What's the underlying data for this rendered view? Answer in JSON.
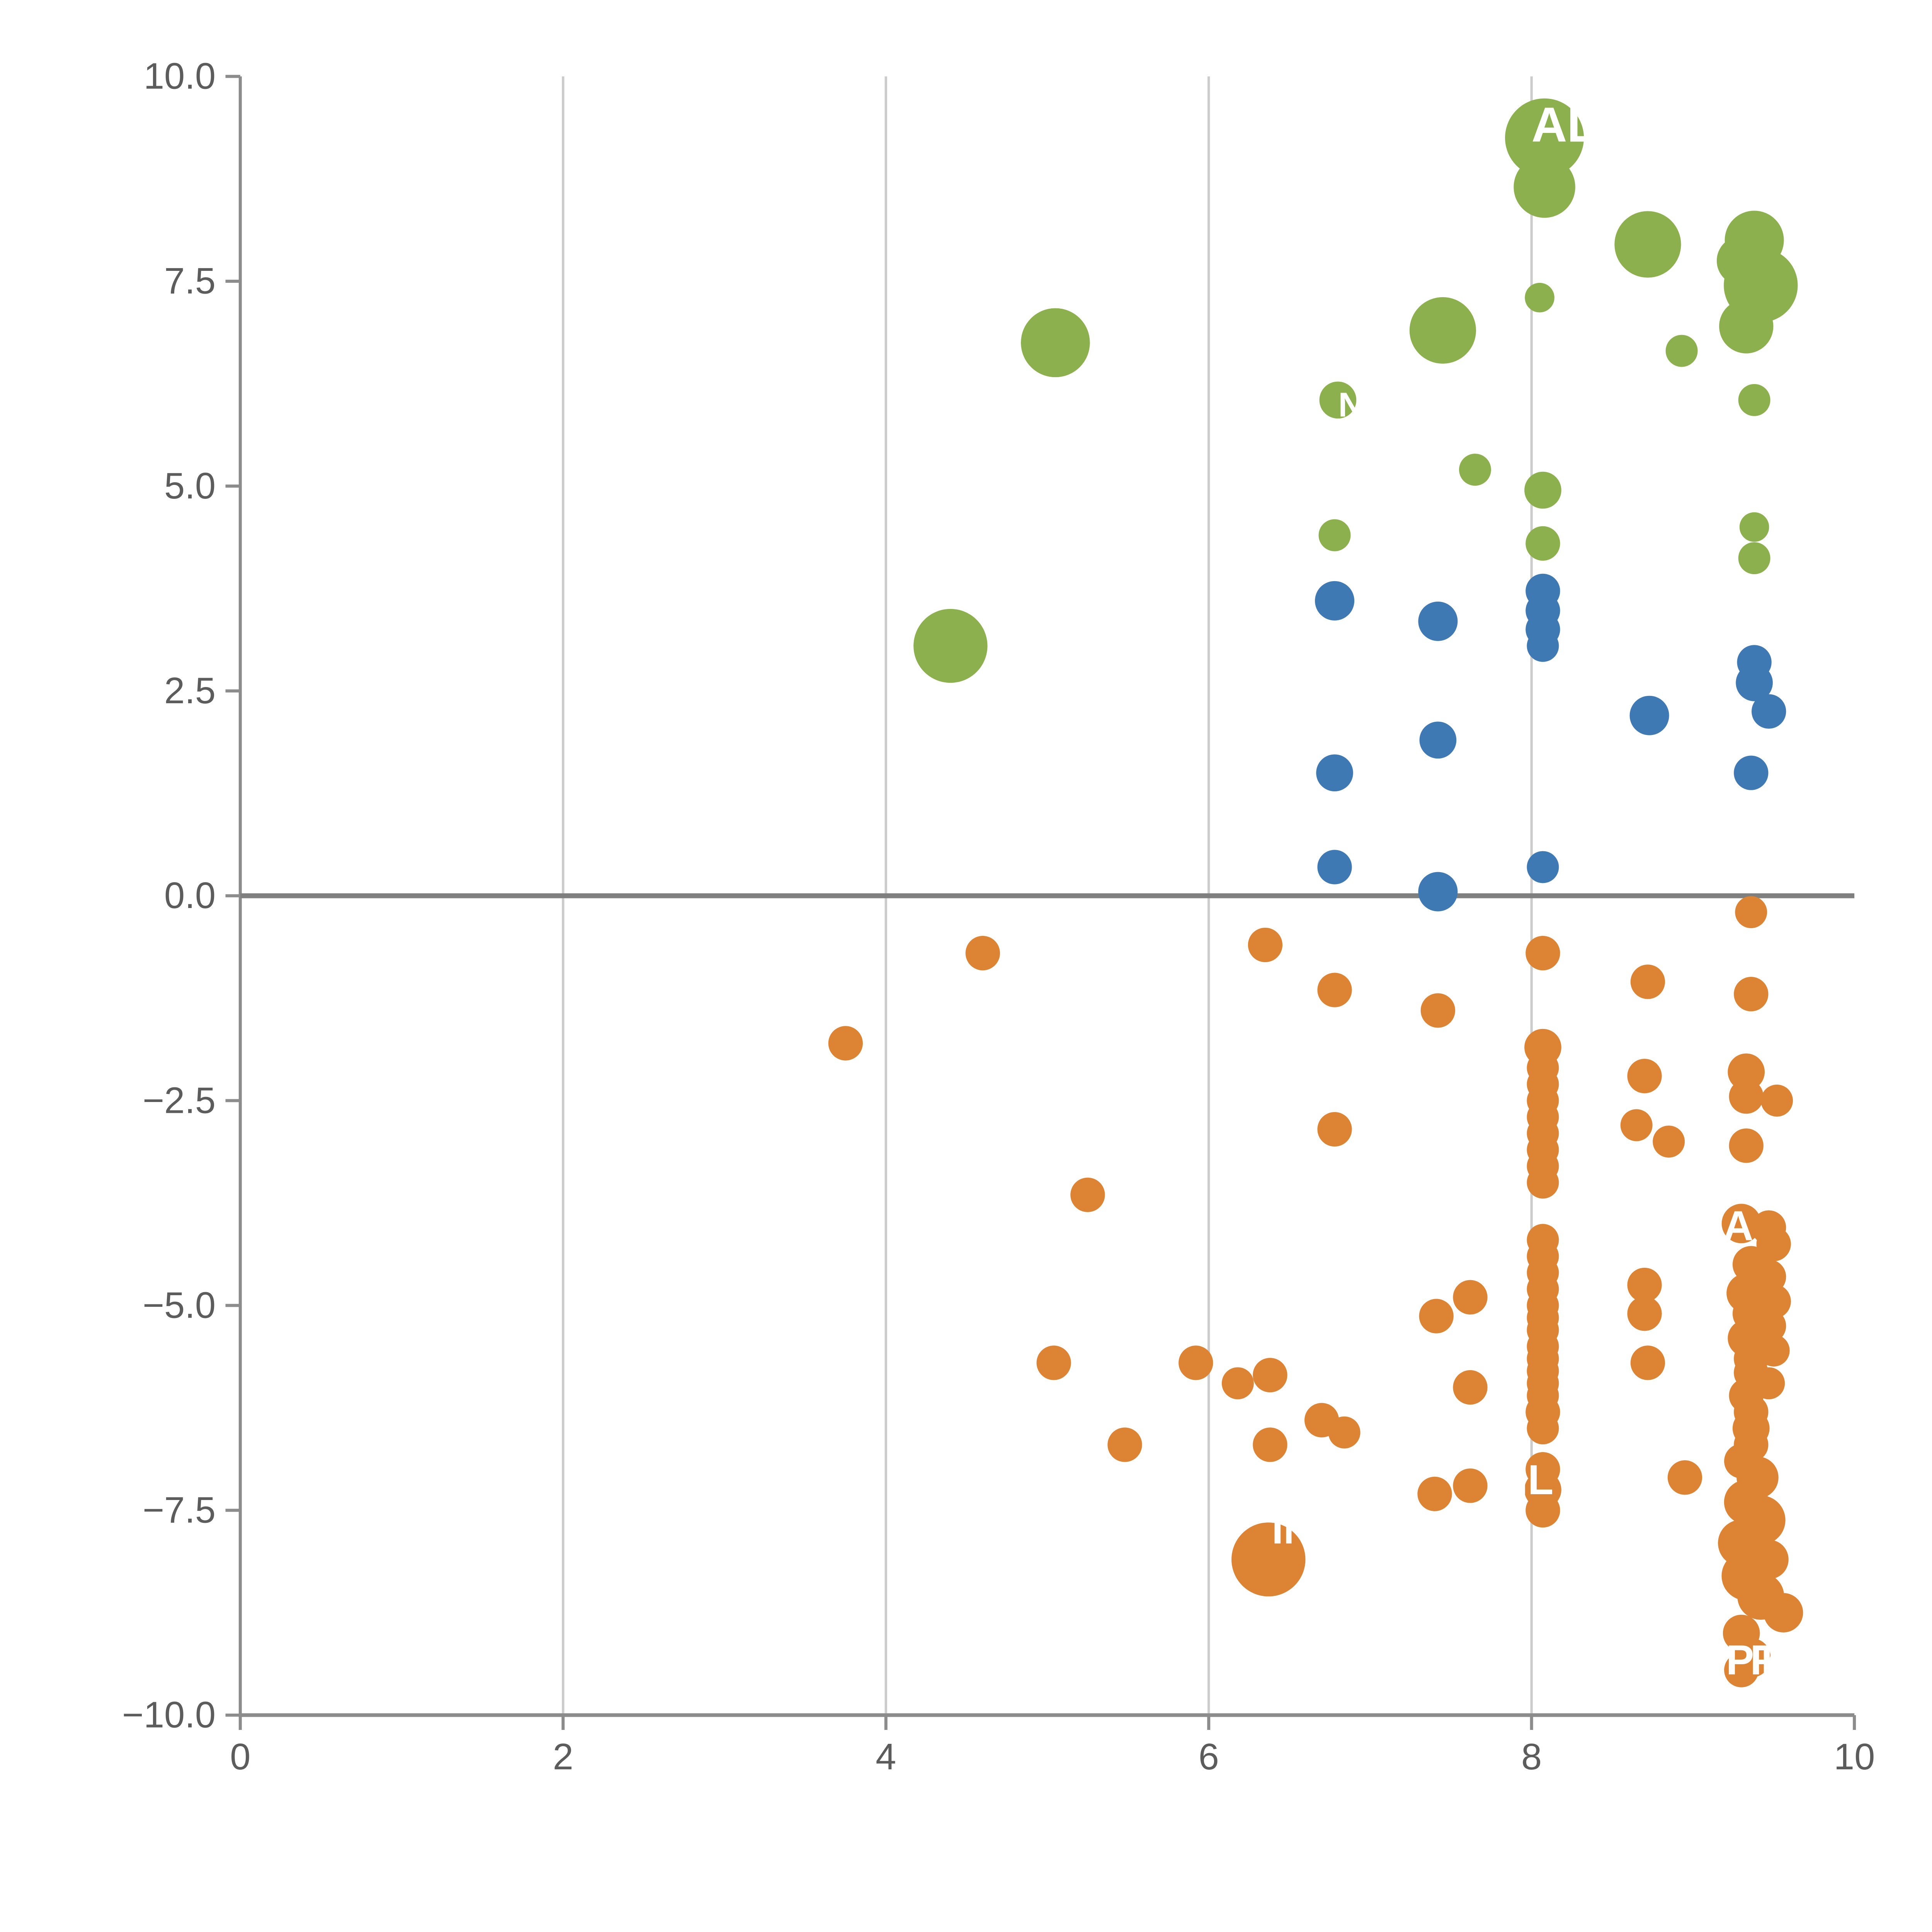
{
  "chart_data": {
    "type": "scatter",
    "title": "",
    "xlabel": "",
    "ylabel": "",
    "xlim": [
      0,
      10
    ],
    "ylim": [
      -10,
      10
    ],
    "grid": "vertical-only",
    "zero_line": true,
    "legend": "none",
    "style": {
      "background": "#ffffff",
      "grid_color": "#cccccc",
      "axis_color": "#8c8c8c",
      "zero_line_color": "#7f7f7f",
      "tick_label_color": "#5c5c5c",
      "bubble_label_color": "#ffffff"
    },
    "x_ticks": [
      {
        "value": 0,
        "label": "0",
        "grid": false
      },
      {
        "value": 2,
        "label": "2",
        "grid": true
      },
      {
        "value": 4,
        "label": "4",
        "grid": true
      },
      {
        "value": 6,
        "label": "6",
        "grid": true
      },
      {
        "value": 8,
        "label": "8",
        "grid": true
      },
      {
        "value": 10,
        "label": "10",
        "grid": false
      }
    ],
    "y_ticks": [
      {
        "value": 10,
        "label": "10.0"
      },
      {
        "value": 7.5,
        "label": "7.5"
      },
      {
        "value": 5,
        "label": "5.0"
      },
      {
        "value": 2.5,
        "label": "2.5"
      },
      {
        "value": 0,
        "label": "0.0"
      },
      {
        "value": -2.5,
        "label": "−2.5"
      },
      {
        "value": -5,
        "label": "−5.0"
      },
      {
        "value": -7.5,
        "label": "−7.5"
      },
      {
        "value": -10,
        "label": "−10.0"
      }
    ],
    "point_format": [
      "x",
      "y",
      "radius_px"
    ],
    "series": [
      {
        "name": "series-green",
        "color": "#8cb04e",
        "points": [
          [
            8.08,
            9.25,
            32
          ],
          [
            8.08,
            8.65,
            25
          ],
          [
            8.72,
            7.95,
            27
          ],
          [
            9.38,
            8.0,
            24
          ],
          [
            9.3,
            7.75,
            20
          ],
          [
            9.42,
            7.45,
            30
          ],
          [
            9.33,
            6.95,
            22
          ],
          [
            8.05,
            7.3,
            12
          ],
          [
            7.45,
            6.9,
            27
          ],
          [
            5.05,
            6.75,
            28
          ],
          [
            8.93,
            6.65,
            13
          ],
          [
            6.8,
            6.05,
            15
          ],
          [
            9.38,
            6.05,
            13
          ],
          [
            7.65,
            5.2,
            13
          ],
          [
            8.07,
            4.95,
            15
          ],
          [
            6.78,
            4.4,
            13
          ],
          [
            8.07,
            4.3,
            14
          ],
          [
            9.38,
            4.5,
            12
          ],
          [
            9.38,
            4.12,
            13
          ],
          [
            4.4,
            3.05,
            30
          ]
        ]
      },
      {
        "name": "series-blue",
        "color": "#3e79b4",
        "points": [
          [
            6.78,
            3.6,
            16
          ],
          [
            7.42,
            3.35,
            16
          ],
          [
            8.07,
            3.72,
            14
          ],
          [
            8.07,
            3.48,
            14
          ],
          [
            8.07,
            3.25,
            14
          ],
          [
            8.07,
            3.05,
            13
          ],
          [
            9.38,
            2.85,
            14
          ],
          [
            9.38,
            2.6,
            15
          ],
          [
            9.47,
            2.25,
            14
          ],
          [
            8.73,
            2.2,
            16
          ],
          [
            7.42,
            1.9,
            15
          ],
          [
            6.78,
            1.5,
            15
          ],
          [
            9.36,
            1.5,
            14
          ],
          [
            6.78,
            0.35,
            14
          ],
          [
            8.07,
            0.35,
            13
          ],
          [
            7.42,
            0.05,
            16
          ]
        ]
      },
      {
        "name": "series-orange",
        "color": "#dc8434",
        "points": [
          [
            4.6,
            -0.7,
            14
          ],
          [
            6.35,
            -0.6,
            14
          ],
          [
            8.07,
            -0.7,
            14
          ],
          [
            6.78,
            -1.15,
            14
          ],
          [
            8.72,
            -1.05,
            14
          ],
          [
            9.36,
            -1.2,
            14
          ],
          [
            7.42,
            -1.4,
            14
          ],
          [
            3.75,
            -1.8,
            14
          ],
          [
            9.36,
            -0.2,
            13
          ],
          [
            8.07,
            -1.85,
            15
          ],
          [
            8.07,
            -2.1,
            13
          ],
          [
            8.07,
            -2.3,
            13
          ],
          [
            8.07,
            -2.5,
            13
          ],
          [
            8.07,
            -2.7,
            13
          ],
          [
            8.07,
            -2.9,
            13
          ],
          [
            8.07,
            -3.1,
            13
          ],
          [
            8.07,
            -3.3,
            13
          ],
          [
            8.07,
            -3.5,
            13
          ],
          [
            8.07,
            -4.2,
            13
          ],
          [
            8.07,
            -4.4,
            13
          ],
          [
            8.07,
            -4.6,
            13
          ],
          [
            8.07,
            -4.8,
            13
          ],
          [
            8.07,
            -5.0,
            13
          ],
          [
            8.07,
            -5.15,
            13
          ],
          [
            8.07,
            -5.3,
            13
          ],
          [
            8.07,
            -5.5,
            13
          ],
          [
            8.07,
            -5.65,
            13
          ],
          [
            8.07,
            -5.8,
            13
          ],
          [
            8.07,
            -5.95,
            13
          ],
          [
            8.07,
            -6.1,
            13
          ],
          [
            8.07,
            -6.3,
            14
          ],
          [
            8.07,
            -6.5,
            13
          ],
          [
            8.07,
            -7.0,
            14
          ],
          [
            8.07,
            -7.25,
            15
          ],
          [
            8.07,
            -7.5,
            14
          ],
          [
            8.7,
            -2.2,
            14
          ],
          [
            9.33,
            -2.15,
            15
          ],
          [
            9.33,
            -2.45,
            14
          ],
          [
            9.52,
            -2.5,
            13
          ],
          [
            6.78,
            -2.85,
            14
          ],
          [
            8.65,
            -2.8,
            13
          ],
          [
            8.85,
            -3.0,
            13
          ],
          [
            9.33,
            -3.05,
            14
          ],
          [
            5.25,
            -3.65,
            14
          ],
          [
            9.3,
            -4.0,
            16
          ],
          [
            9.47,
            -4.05,
            14
          ],
          [
            9.5,
            -4.25,
            14
          ],
          [
            9.36,
            -4.5,
            15
          ],
          [
            9.47,
            -4.65,
            14
          ],
          [
            9.33,
            -4.85,
            16
          ],
          [
            9.5,
            -4.95,
            14
          ],
          [
            9.36,
            -5.1,
            15
          ],
          [
            9.47,
            -5.25,
            14
          ],
          [
            9.33,
            -5.4,
            15
          ],
          [
            9.5,
            -5.55,
            13
          ],
          [
            9.36,
            -5.65,
            14
          ],
          [
            9.36,
            -5.82,
            14
          ],
          [
            9.47,
            -5.95,
            13
          ],
          [
            9.33,
            -6.1,
            14
          ],
          [
            9.36,
            -6.3,
            14
          ],
          [
            9.36,
            -6.5,
            15
          ],
          [
            9.36,
            -6.7,
            14
          ],
          [
            9.3,
            -6.9,
            14
          ],
          [
            9.4,
            -7.1,
            17
          ],
          [
            9.33,
            -7.4,
            18
          ],
          [
            9.42,
            -7.62,
            20
          ],
          [
            9.3,
            -7.9,
            19
          ],
          [
            9.47,
            -8.1,
            16
          ],
          [
            9.33,
            -8.3,
            20
          ],
          [
            9.42,
            -8.55,
            19
          ],
          [
            9.56,
            -8.75,
            16
          ],
          [
            9.3,
            -9.0,
            15
          ],
          [
            9.36,
            -9.3,
            16
          ],
          [
            9.3,
            -9.45,
            14
          ],
          [
            7.41,
            -5.13,
            14
          ],
          [
            7.62,
            -4.9,
            14
          ],
          [
            8.7,
            -4.75,
            14
          ],
          [
            8.7,
            -5.1,
            14
          ],
          [
            5.04,
            -5.7,
            14
          ],
          [
            5.92,
            -5.7,
            14
          ],
          [
            6.18,
            -5.95,
            13
          ],
          [
            6.38,
            -5.85,
            14
          ],
          [
            8.72,
            -5.7,
            14
          ],
          [
            7.62,
            -6.0,
            14
          ],
          [
            5.48,
            -6.7,
            14
          ],
          [
            6.38,
            -6.7,
            14
          ],
          [
            6.7,
            -6.4,
            14
          ],
          [
            6.84,
            -6.55,
            13
          ],
          [
            7.4,
            -7.3,
            14
          ],
          [
            7.62,
            -7.2,
            14
          ],
          [
            8.95,
            -7.1,
            14
          ],
          [
            6.37,
            -8.1,
            30
          ]
        ]
      }
    ],
    "labels": [
      {
        "text": "AD",
        "x": 8.22,
        "y": 9.42,
        "size": 40
      },
      {
        "text": "N",
        "x": 6.88,
        "y": 6.0,
        "size": 28
      },
      {
        "text": "A",
        "x": 9.28,
        "y": -4.02,
        "size": 34
      },
      {
        "text": "IL",
        "x": 8.02,
        "y": -7.12,
        "size": 34
      },
      {
        "text": "IN",
        "x": 6.52,
        "y": -7.72,
        "size": 34
      },
      {
        "text": "OPT",
        "x": 9.27,
        "y": -9.32,
        "size": 34
      },
      {
        "text": "PT",
        "x": 9.52,
        "y": -9.32,
        "size": 34
      }
    ]
  }
}
